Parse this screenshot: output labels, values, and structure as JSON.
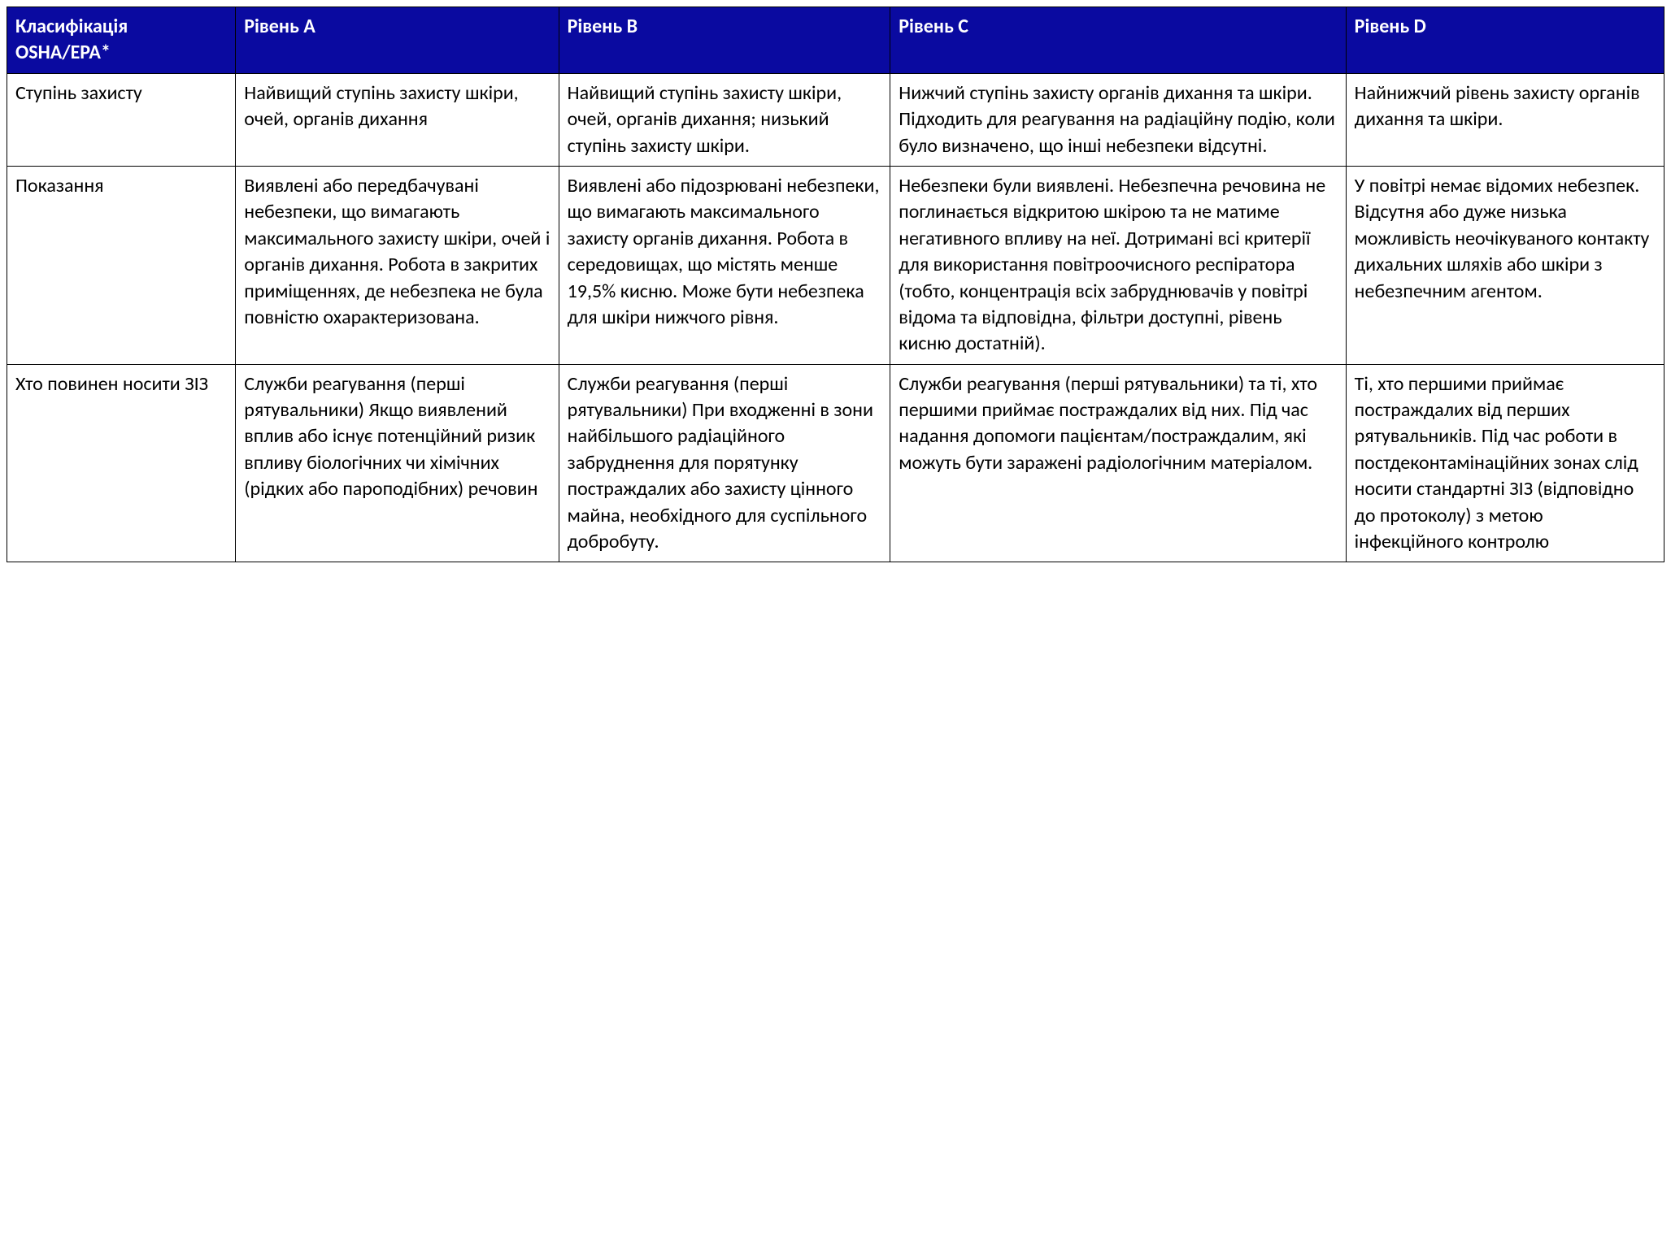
{
  "table": {
    "type": "table",
    "header_bg_color": "#0a0aa0",
    "header_text_color": "#ffffff",
    "cell_bg_color": "#ffffff",
    "cell_text_color": "#000000",
    "border_color": "#000000",
    "font_family": "Calibri, Arial, sans-serif",
    "cell_fontsize": 24,
    "column_widths_pct": [
      13.8,
      19.5,
      20,
      27.5,
      19.2
    ],
    "columns": [
      "Класифікація OSHA/EPA*",
      "Рівень А",
      "Рівень В",
      "Рівень С",
      "Рівень D"
    ],
    "rows": [
      {
        "label": "Ступінь захисту",
        "a": "Найвищий ступінь захисту шкіри, очей, органів дихання",
        "b": "Найвищий ступінь захисту шкіри, очей, органів дихання; низький ступінь захисту шкіри.",
        "c": "Нижчий ступінь захисту органів дихання та шкіри. Підходить для реагування на радіаційну подію, коли було визначено, що інші небезпеки відсутні.",
        "d": "Найнижчий рівень захисту органів дихання та шкіри."
      },
      {
        "label": "Показання",
        "a": "Виявлені або передбачувані небезпеки, що вимагають максимального захисту шкіри, очей і органів дихання. Робота в закритих приміщеннях, де небезпека не була повністю охарактеризована.",
        "b": "Виявлені або підозрювані небезпеки, що вимагають максимального захисту органів дихання. Робота в середовищах, що містять менше 19,5% кисню. Може бути небезпека для шкіри нижчого рівня.",
        "c": "Небезпеки були виявлені. Небезпечна речовина не поглинається відкритою шкірою та не матиме негативного впливу на неї. Дотримані всі критерії для використання повітроочисного респіратора (тобто, концентрація всіх забруднювачів у повітрі відома та  відповідна, фільтри доступні, рівень кисню достатній).",
        "d": "У повітрі немає відомих небезпек. Відсутня або дуже низька можливість неочікуваного контакту дихальних шляхів або шкіри з небезпечним агентом."
      },
      {
        "label": "Хто повинен носити ЗІЗ",
        "a": "Служби реагування (перші рятувальники) Якщо виявлений вплив або існує потенційний ризик впливу біологічних чи хімічних (рідких або пароподібних) речовин",
        "b": "Служби реагування (перші рятувальники) При входженні в зони найбільшого радіаційного забруднення для порятунку постраждалих або захисту цінного майна, необхідного для суспільного добробуту.",
        "c": "Служби реагування (перші рятувальники) та ті, хто першими приймає постраждалих від них. Під час надання допомоги пацієнтам/постраждалим, які можуть бути заражені радіологічним матеріалом.",
        "d": "Ті, хто першими приймає постраждалих від перших рятувальників. Під час роботи в постдеконтамінаційних зонах слід носити стандартні ЗІЗ (відповідно до протоколу) з метою інфекційного контролю"
      }
    ]
  }
}
